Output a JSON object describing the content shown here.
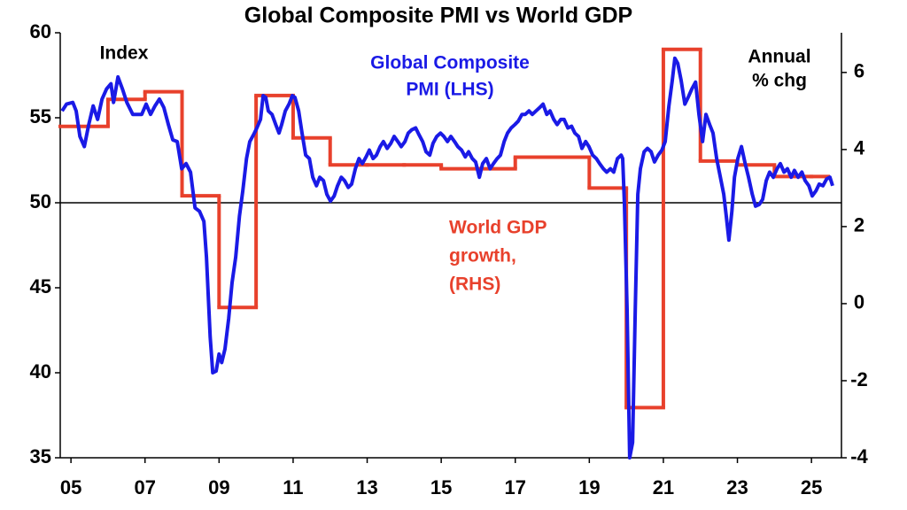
{
  "chart_data": {
    "type": "line",
    "title": "Global Composite PMI vs World GDP",
    "xlim": [
      2004.71,
      2025.81
    ],
    "xticks": [
      {
        "value": 2005,
        "label": "05"
      },
      {
        "value": 2007,
        "label": "07"
      },
      {
        "value": 2009,
        "label": "09"
      },
      {
        "value": 2011,
        "label": "11"
      },
      {
        "value": 2013,
        "label": "13"
      },
      {
        "value": 2015,
        "label": "15"
      },
      {
        "value": 2017,
        "label": "17"
      },
      {
        "value": 2019,
        "label": "19"
      },
      {
        "value": 2021,
        "label": "21"
      },
      {
        "value": 2023,
        "label": "23"
      },
      {
        "value": 2025,
        "label": "25"
      }
    ],
    "ylim": [
      35,
      60
    ],
    "yticks": [
      35,
      40,
      45,
      50,
      55,
      60
    ],
    "y2lim": [
      -4,
      7.03
    ],
    "y2ticks": [
      -4,
      -2,
      0,
      2,
      4,
      6
    ],
    "hline": 50,
    "annotations": [
      {
        "lines": [
          "Index"
        ],
        "color": "#000000"
      },
      {
        "lines": [
          "Global Composite",
          "PMI (LHS)"
        ],
        "color": "#1a1ae6"
      },
      {
        "lines": [
          "World GDP",
          "growth,",
          "(RHS)"
        ],
        "color": "#e8412c"
      },
      {
        "lines": [
          "Annual",
          "% chg"
        ],
        "color": "#000000"
      }
    ],
    "series": [
      {
        "color": "#1a1ae6",
        "axis": "y",
        "x": [
          2004.76,
          2004.88,
          2005.05,
          2005.14,
          2005.24,
          2005.36,
          2005.48,
          2005.6,
          2005.72,
          2005.84,
          2005.96,
          2006.08,
          2006.15,
          2006.27,
          2006.39,
          2006.51,
          2006.67,
          2006.91,
          2007.03,
          2007.15,
          2007.27,
          2007.39,
          2007.51,
          2007.63,
          2007.75,
          2007.87,
          2007.99,
          2008.11,
          2008.23,
          2008.35,
          2008.47,
          2008.59,
          2008.66,
          2008.76,
          2008.83,
          2008.92,
          2009.0,
          2009.07,
          2009.16,
          2009.26,
          2009.35,
          2009.45,
          2009.55,
          2009.64,
          2009.74,
          2009.83,
          2009.93,
          2010.02,
          2010.12,
          2010.19,
          2010.26,
          2010.33,
          2010.43,
          2010.53,
          2010.62,
          2010.69,
          2010.79,
          2010.89,
          2010.98,
          2011.05,
          2011.15,
          2011.24,
          2011.34,
          2011.44,
          2011.53,
          2011.63,
          2011.72,
          2011.82,
          2011.91,
          2012.01,
          2012.11,
          2012.2,
          2012.3,
          2012.39,
          2012.49,
          2012.58,
          2012.68,
          2012.78,
          2012.87,
          2012.97,
          2013.06,
          2013.16,
          2013.25,
          2013.35,
          2013.44,
          2013.54,
          2013.64,
          2013.73,
          2013.83,
          2013.92,
          2014.02,
          2014.11,
          2014.21,
          2014.31,
          2014.4,
          2014.5,
          2014.59,
          2014.69,
          2014.78,
          2014.88,
          2014.98,
          2015.07,
          2015.17,
          2015.26,
          2015.36,
          2015.45,
          2015.55,
          2015.65,
          2015.74,
          2015.84,
          2015.93,
          2016.03,
          2016.12,
          2016.22,
          2016.32,
          2016.41,
          2016.51,
          2016.6,
          2016.7,
          2016.79,
          2016.89,
          2016.99,
          2017.08,
          2017.18,
          2017.27,
          2017.37,
          2017.46,
          2017.56,
          2017.66,
          2017.75,
          2017.85,
          2017.94,
          2018.04,
          2018.13,
          2018.23,
          2018.32,
          2018.42,
          2018.52,
          2018.61,
          2018.71,
          2018.8,
          2018.9,
          2018.99,
          2019.09,
          2019.19,
          2019.28,
          2019.38,
          2019.47,
          2019.57,
          2019.66,
          2019.76,
          2019.86,
          2019.9,
          2019.95,
          2020.02,
          2020.09,
          2020.17,
          2020.24,
          2020.31,
          2020.38,
          2020.48,
          2020.57,
          2020.67,
          2020.76,
          2020.86,
          2020.96,
          2021.05,
          2021.15,
          2021.24,
          2021.31,
          2021.39,
          2021.48,
          2021.58,
          2021.67,
          2021.77,
          2021.87,
          2021.96,
          2022.06,
          2022.15,
          2022.25,
          2022.34,
          2022.44,
          2022.54,
          2022.63,
          2022.7,
          2022.77,
          2022.85,
          2022.92,
          2023.01,
          2023.11,
          2023.21,
          2023.3,
          2023.4,
          2023.49,
          2023.59,
          2023.68,
          2023.78,
          2023.87,
          2023.97,
          2024.07,
          2024.16,
          2024.26,
          2024.35,
          2024.45,
          2024.54,
          2024.64,
          2024.74,
          2024.83,
          2024.93,
          2025.02,
          2025.12,
          2025.21,
          2025.31,
          2025.41,
          2025.5,
          2025.57
        ],
        "values": [
          55.4,
          55.8,
          55.9,
          55.4,
          53.9,
          53.3,
          54.6,
          55.7,
          54.9,
          56.1,
          56.7,
          57.0,
          55.9,
          57.4,
          56.7,
          55.9,
          55.2,
          55.2,
          55.8,
          55.2,
          55.7,
          56.1,
          55.6,
          54.6,
          53.7,
          53.6,
          52.0,
          52.3,
          51.8,
          49.7,
          49.5,
          48.9,
          46.8,
          42.1,
          40.0,
          40.1,
          41.1,
          40.6,
          41.4,
          43.2,
          45.3,
          46.8,
          49.2,
          50.7,
          52.6,
          53.6,
          54.0,
          54.4,
          54.9,
          56.3,
          56.2,
          55.4,
          55.2,
          54.6,
          54.1,
          54.6,
          55.4,
          55.8,
          56.3,
          56.2,
          55.4,
          54.1,
          52.8,
          52.6,
          51.5,
          51.0,
          51.5,
          51.3,
          50.5,
          50.1,
          50.4,
          51.0,
          51.5,
          51.3,
          50.9,
          51.1,
          52.0,
          52.6,
          52.3,
          52.7,
          53.1,
          52.6,
          52.8,
          53.3,
          53.6,
          53.2,
          53.5,
          53.9,
          53.6,
          53.3,
          53.6,
          54.1,
          54.3,
          54.4,
          54.0,
          53.6,
          53.0,
          52.8,
          53.5,
          53.9,
          54.1,
          53.9,
          53.6,
          53.9,
          53.6,
          53.3,
          53.1,
          52.7,
          53.0,
          52.6,
          52.4,
          51.5,
          52.3,
          52.6,
          52.0,
          52.3,
          52.6,
          52.8,
          53.6,
          54.1,
          54.4,
          54.6,
          54.8,
          55.2,
          55.2,
          55.4,
          55.2,
          55.4,
          55.6,
          55.8,
          55.2,
          55.4,
          54.9,
          54.6,
          54.9,
          54.9,
          54.4,
          54.5,
          54.1,
          53.9,
          53.2,
          53.6,
          53.3,
          52.8,
          52.6,
          52.3,
          52.0,
          51.8,
          52.0,
          51.8,
          52.6,
          52.8,
          52.6,
          49.9,
          43.7,
          35.0,
          35.9,
          43.7,
          50.5,
          52.0,
          53.0,
          53.2,
          53.0,
          52.4,
          52.8,
          53.1,
          53.6,
          55.7,
          57.2,
          58.5,
          58.2,
          57.2,
          55.8,
          56.2,
          56.7,
          57.1,
          55.2,
          53.6,
          55.2,
          54.6,
          54.1,
          52.6,
          51.5,
          50.5,
          49.2,
          47.8,
          49.5,
          51.5,
          52.6,
          53.3,
          52.3,
          51.5,
          50.5,
          49.8,
          49.9,
          50.2,
          51.3,
          51.8,
          51.5,
          52.0,
          52.3,
          51.8,
          52.0,
          51.5,
          51.9,
          51.5,
          51.8,
          51.3,
          51.0,
          50.4,
          50.7,
          51.1,
          51.0,
          51.4,
          51.5,
          51.0
        ]
      },
      {
        "color": "#e8412c",
        "axis": "y2",
        "style": "step",
        "x": [
          2005,
          2006,
          2007,
          2008,
          2009,
          2010,
          2011,
          2012,
          2013,
          2014,
          2015,
          2016,
          2017,
          2018,
          2019,
          2020,
          2021,
          2022,
          2023,
          2024,
          2025
        ],
        "values": [
          4.6,
          5.3,
          5.5,
          2.8,
          -0.1,
          5.4,
          4.3,
          3.6,
          3.6,
          3.6,
          3.5,
          3.5,
          3.8,
          3.8,
          3.0,
          -2.7,
          6.6,
          3.7,
          3.6,
          3.3,
          3.3
        ]
      }
    ]
  }
}
